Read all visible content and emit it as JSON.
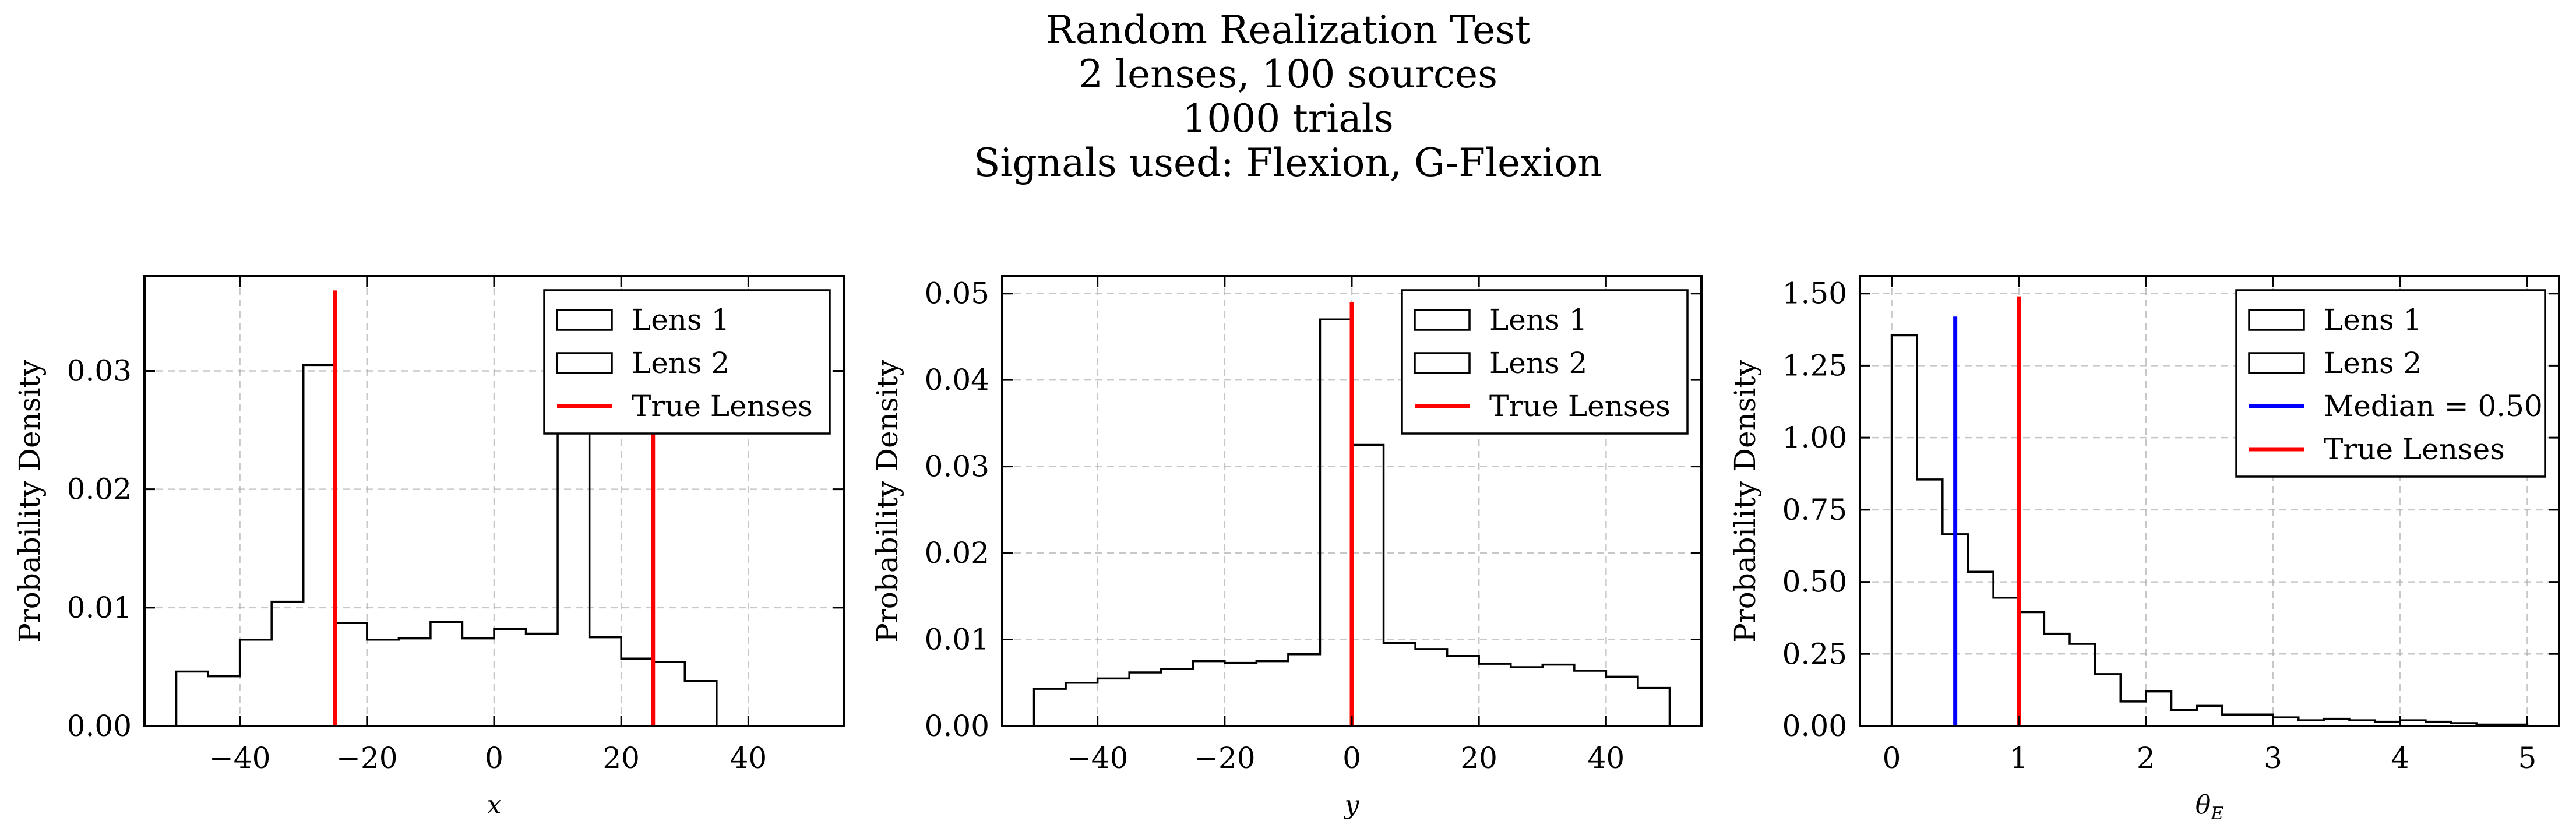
{
  "figure": {
    "title_lines": [
      "Random Realization Test",
      "2 lenses, 100 sources",
      "1000 trials",
      "Signals used: Flexion, G-Flexion"
    ]
  },
  "colors": {
    "histogram": "#000000",
    "true_lenses": "#ff0000",
    "median": "#0000ff",
    "grid": "#b0b0b0"
  },
  "chart_data": [
    {
      "type": "histogram",
      "xlabel": "x",
      "ylabel": "Probability Density",
      "xlim": [
        -55,
        55
      ],
      "ylim": [
        0,
        0.038
      ],
      "xticks": [
        -40,
        -20,
        0,
        20,
        40
      ],
      "xtick_labels": [
        "−40",
        "−20",
        "0",
        "20",
        "40"
      ],
      "yticks": [
        0,
        0.01,
        0.02,
        0.03
      ],
      "ytick_labels": [
        "0.00",
        "0.01",
        "0.02",
        "0.03"
      ],
      "grid": true,
      "legend_position": "top-right",
      "legend": [
        {
          "label": "Lens 1",
          "kind": "box"
        },
        {
          "label": "Lens 2",
          "kind": "box"
        },
        {
          "label": "True Lenses",
          "kind": "line",
          "color": "#ff0000"
        }
      ],
      "series": [
        {
          "name": "Lens 1",
          "bin_edges": [
            -50,
            -45,
            -40,
            -35,
            -30,
            -25,
            -20,
            -15,
            -10,
            -5,
            0,
            5,
            10,
            15,
            20,
            25,
            30,
            35,
            40,
            45,
            50
          ],
          "values": [
            0.0046,
            0.0042,
            0.0073,
            0.0105,
            0.0305,
            0.0087,
            0.0073,
            0.0074,
            0.0088,
            0.0074,
            0.0082,
            0.0078,
            0.03,
            0.0075,
            0.0057,
            0.0054,
            0.0038,
            0,
            0,
            0
          ]
        }
      ],
      "vlines": [
        {
          "name": "True Lenses",
          "x": -25,
          "ymax": 0.0368,
          "color": "#ff0000"
        },
        {
          "name": "True Lenses",
          "x": 25,
          "ymax": 0.0368,
          "color": "#ff0000"
        }
      ]
    },
    {
      "type": "histogram",
      "xlabel": "y",
      "ylabel": "Probability Density",
      "xlim": [
        -55,
        55
      ],
      "ylim": [
        0,
        0.052
      ],
      "xticks": [
        -40,
        -20,
        0,
        20,
        40
      ],
      "xtick_labels": [
        "−40",
        "−20",
        "0",
        "20",
        "40"
      ],
      "yticks": [
        0,
        0.01,
        0.02,
        0.03,
        0.04,
        0.05
      ],
      "ytick_labels": [
        "0.00",
        "0.01",
        "0.02",
        "0.03",
        "0.04",
        "0.05"
      ],
      "grid": true,
      "legend_position": "top-right",
      "legend": [
        {
          "label": "Lens 1",
          "kind": "box"
        },
        {
          "label": "Lens 2",
          "kind": "box"
        },
        {
          "label": "True Lenses",
          "kind": "line",
          "color": "#ff0000"
        }
      ],
      "series": [
        {
          "name": "Lens 1",
          "bin_edges": [
            -50,
            -45,
            -40,
            -35,
            -30,
            -25,
            -20,
            -15,
            -10,
            -5,
            0,
            5,
            10,
            15,
            20,
            25,
            30,
            35,
            40,
            45,
            50
          ],
          "values": [
            0.0043,
            0.005,
            0.0055,
            0.0062,
            0.0066,
            0.0075,
            0.0073,
            0.0075,
            0.0083,
            0.047,
            0.0325,
            0.0096,
            0.0089,
            0.0081,
            0.0072,
            0.0068,
            0.0071,
            0.0064,
            0.0057,
            0.0044
          ]
        }
      ],
      "vlines": [
        {
          "name": "True Lenses",
          "x": 0,
          "ymax": 0.049,
          "color": "#ff0000"
        }
      ]
    },
    {
      "type": "histogram",
      "xlabel": "θE",
      "ylabel": "Probability Density",
      "xlim": [
        -0.25,
        5.25
      ],
      "ylim": [
        0,
        1.56
      ],
      "xticks": [
        0,
        1,
        2,
        3,
        4,
        5
      ],
      "xtick_labels": [
        "0",
        "1",
        "2",
        "3",
        "4",
        "5"
      ],
      "yticks": [
        0,
        0.25,
        0.5,
        0.75,
        1.0,
        1.25,
        1.5
      ],
      "ytick_labels": [
        "0.00",
        "0.25",
        "0.50",
        "0.75",
        "1.00",
        "1.25",
        "1.50"
      ],
      "grid": true,
      "legend_position": "top-right",
      "legend": [
        {
          "label": "Lens 1",
          "kind": "box"
        },
        {
          "label": "Lens 2",
          "kind": "box"
        },
        {
          "label": "Median = 0.50",
          "kind": "line",
          "color": "#0000ff"
        },
        {
          "label": "True Lenses",
          "kind": "line",
          "color": "#ff0000"
        }
      ],
      "series": [
        {
          "name": "Lens 1",
          "bin_edges": [
            0,
            0.2,
            0.4,
            0.6,
            0.8,
            1.0,
            1.2,
            1.4,
            1.6,
            1.8,
            2.0,
            2.2,
            2.4,
            2.6,
            2.8,
            3.0,
            3.2,
            3.4,
            3.6,
            3.8,
            4.0,
            4.2,
            4.4,
            4.6,
            4.8,
            5.0
          ],
          "values": [
            1.355,
            0.855,
            0.665,
            0.535,
            0.445,
            0.395,
            0.32,
            0.285,
            0.18,
            0.085,
            0.12,
            0.055,
            0.07,
            0.04,
            0.04,
            0.03,
            0.02,
            0.025,
            0.02,
            0.015,
            0.02,
            0.015,
            0.01,
            0.005,
            0.005
          ]
        }
      ],
      "vlines": [
        {
          "name": "Median = 0.50",
          "x": 0.5,
          "ymax": 1.42,
          "color": "#0000ff"
        },
        {
          "name": "True Lenses",
          "x": 1.0,
          "ymax": 1.49,
          "color": "#ff0000"
        }
      ]
    }
  ]
}
